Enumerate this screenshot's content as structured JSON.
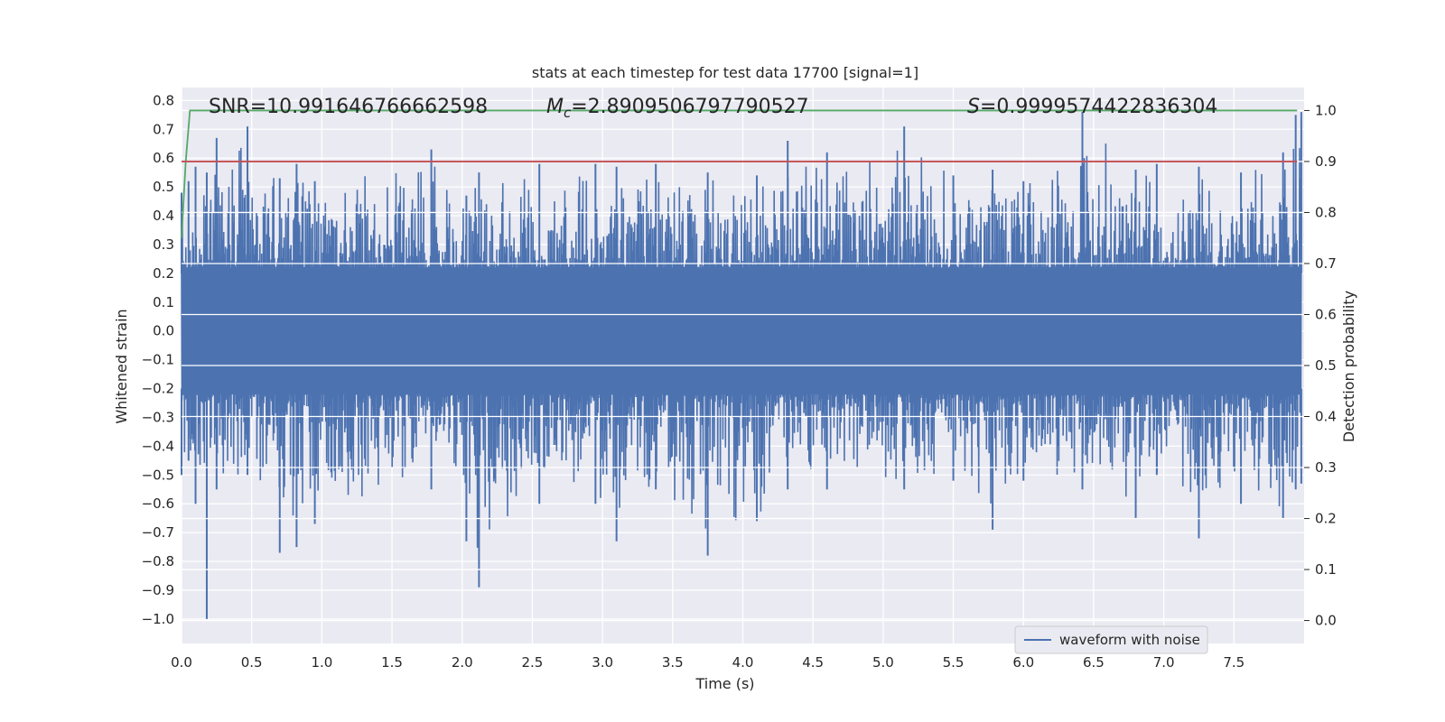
{
  "chart_data": {
    "type": "line",
    "title": "stats at each timestep for test data 17700 [signal=1]",
    "xlabel": "Time (s)",
    "ylabel": "Whitened strain",
    "y2label": "Detection probability",
    "xlim": [
      0.0,
      8.0
    ],
    "ylim": [
      -1.085,
      0.845
    ],
    "y2lim": [
      -0.045,
      1.045
    ],
    "xticks": [
      "0.0",
      "0.5",
      "1.0",
      "1.5",
      "2.0",
      "2.5",
      "3.0",
      "3.5",
      "4.0",
      "4.5",
      "5.0",
      "5.5",
      "6.0",
      "6.5",
      "7.0",
      "7.5"
    ],
    "yticks": [
      "0.8",
      "0.7",
      "0.6",
      "0.5",
      "0.4",
      "0.3",
      "0.2",
      "0.1",
      "0.0",
      "−0.1",
      "−0.2",
      "−0.3",
      "−0.4",
      "−0.5",
      "−0.6",
      "−0.7",
      "−0.8",
      "−0.9",
      "−1.0"
    ],
    "y2ticks": [
      "1.0",
      "0.9",
      "0.8",
      "0.7",
      "0.6",
      "0.5",
      "0.4",
      "0.3",
      "0.2",
      "0.1",
      "0.0"
    ],
    "grid": true,
    "legend_placement": "lower-right",
    "annotations": {
      "snr": "SNR=10.991646766662598",
      "mc_symbol": "M",
      "mc_subscript": "c",
      "mc_value": "=2.8909506797790527",
      "s_symbol": "S",
      "s_value": "=0.9999574422836304"
    },
    "series": [
      {
        "name": "waveform with noise",
        "axis": "left",
        "color": "#4c72b0",
        "envelope": {
          "x": [
            0.0,
            0.05,
            0.1,
            0.18,
            0.25,
            0.47,
            0.7,
            0.82,
            0.95,
            1.78,
            2.03,
            2.12,
            2.55,
            2.95,
            3.1,
            3.38,
            3.75,
            4.1,
            4.32,
            4.6,
            5.15,
            5.5,
            5.78,
            6.0,
            6.42,
            6.8,
            6.95,
            7.25,
            7.55,
            7.85,
            7.94,
            7.98
          ],
          "max": [
            0.48,
            0.52,
            0.57,
            0.55,
            0.67,
            0.71,
            0.53,
            0.58,
            0.52,
            0.63,
            0.47,
            0.55,
            0.58,
            0.58,
            0.57,
            0.58,
            0.55,
            0.54,
            0.66,
            0.62,
            0.71,
            0.54,
            0.56,
            0.52,
            0.76,
            0.56,
            0.58,
            0.57,
            0.55,
            0.62,
            0.75,
            0.76
          ],
          "min": [
            -0.5,
            -0.45,
            -0.6,
            -1.0,
            -0.55,
            -0.5,
            -0.77,
            -0.75,
            -0.67,
            -0.55,
            -0.73,
            -0.89,
            -0.6,
            -0.6,
            -0.73,
            -0.55,
            -0.78,
            -0.66,
            -0.55,
            -0.55,
            -0.55,
            -0.52,
            -0.69,
            -0.52,
            -0.55,
            -0.65,
            -0.5,
            -0.72,
            -0.6,
            -0.65,
            -0.55,
            -0.53
          ]
        }
      },
      {
        "name": "",
        "axis": "right",
        "color": "#55a868",
        "x": [
          0.0,
          0.03,
          0.06,
          0.1,
          7.95
        ],
        "values": [
          0.75,
          0.9,
          1.0,
          1.0,
          1.0
        ]
      },
      {
        "name": "",
        "axis": "right",
        "color": "#c44e52",
        "x": [
          0.0,
          7.95
        ],
        "values": [
          0.9,
          0.9
        ]
      }
    ]
  }
}
